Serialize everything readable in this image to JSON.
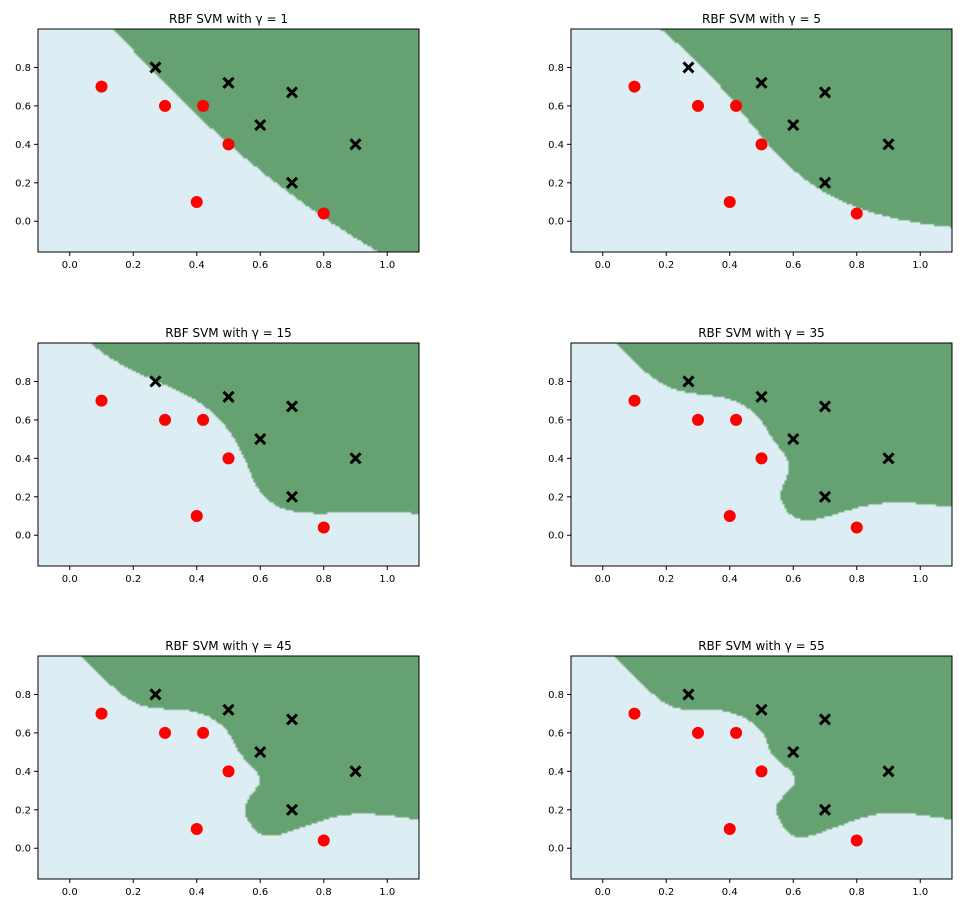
{
  "colors": {
    "class_a_region": "#ddedf4",
    "class_b_region": "#66a271",
    "red_points": "#ff0000",
    "x_points": "#000000",
    "frame": "#000000"
  },
  "chart_data": [
    {
      "type": "scatter",
      "title": "RBF SVM with γ = 1",
      "gamma": 1,
      "xlim": [
        -0.1,
        1.1
      ],
      "ylim": [
        -0.16,
        1.0
      ],
      "xticks": [
        "0.0",
        "0.2",
        "0.4",
        "0.6",
        "0.8",
        "1.0"
      ],
      "yticks": [
        "0.0",
        "0.2",
        "0.4",
        "0.6",
        "0.8"
      ],
      "series": [
        {
          "marker": "circle",
          "points": [
            [
              0.1,
              0.7
            ],
            [
              0.3,
              0.6
            ],
            [
              0.42,
              0.6
            ],
            [
              0.5,
              0.4
            ],
            [
              0.4,
              0.1
            ],
            [
              0.8,
              0.04
            ]
          ]
        },
        {
          "marker": "x",
          "points": [
            [
              0.27,
              0.8
            ],
            [
              0.5,
              0.72
            ],
            [
              0.7,
              0.67
            ],
            [
              0.6,
              0.5
            ],
            [
              0.9,
              0.4
            ],
            [
              0.7,
              0.2
            ]
          ]
        }
      ]
    },
    {
      "type": "scatter",
      "title": "RBF SVM with γ = 5",
      "gamma": 5,
      "xlim": [
        -0.1,
        1.1
      ],
      "ylim": [
        -0.16,
        1.0
      ],
      "xticks": [
        "0.0",
        "0.2",
        "0.4",
        "0.6",
        "0.8",
        "1.0"
      ],
      "yticks": [
        "0.0",
        "0.2",
        "0.4",
        "0.6",
        "0.8"
      ],
      "series": [
        {
          "marker": "circle",
          "points": [
            [
              0.1,
              0.7
            ],
            [
              0.3,
              0.6
            ],
            [
              0.42,
              0.6
            ],
            [
              0.5,
              0.4
            ],
            [
              0.4,
              0.1
            ],
            [
              0.8,
              0.04
            ]
          ]
        },
        {
          "marker": "x",
          "points": [
            [
              0.27,
              0.8
            ],
            [
              0.5,
              0.72
            ],
            [
              0.7,
              0.67
            ],
            [
              0.6,
              0.5
            ],
            [
              0.9,
              0.4
            ],
            [
              0.7,
              0.2
            ]
          ]
        }
      ]
    },
    {
      "type": "scatter",
      "title": "RBF SVM with γ = 15",
      "gamma": 15,
      "xlim": [
        -0.1,
        1.1
      ],
      "ylim": [
        -0.16,
        1.0
      ],
      "xticks": [
        "0.0",
        "0.2",
        "0.4",
        "0.6",
        "0.8",
        "1.0"
      ],
      "yticks": [
        "0.0",
        "0.2",
        "0.4",
        "0.6",
        "0.8"
      ],
      "series": [
        {
          "marker": "circle",
          "points": [
            [
              0.1,
              0.7
            ],
            [
              0.3,
              0.6
            ],
            [
              0.42,
              0.6
            ],
            [
              0.5,
              0.4
            ],
            [
              0.4,
              0.1
            ],
            [
              0.8,
              0.04
            ]
          ]
        },
        {
          "marker": "x",
          "points": [
            [
              0.27,
              0.8
            ],
            [
              0.5,
              0.72
            ],
            [
              0.7,
              0.67
            ],
            [
              0.6,
              0.5
            ],
            [
              0.9,
              0.4
            ],
            [
              0.7,
              0.2
            ]
          ]
        }
      ]
    },
    {
      "type": "scatter",
      "title": "RBF SVM with γ = 35",
      "gamma": 35,
      "xlim": [
        -0.1,
        1.1
      ],
      "ylim": [
        -0.16,
        1.0
      ],
      "xticks": [
        "0.0",
        "0.2",
        "0.4",
        "0.6",
        "0.8",
        "1.0"
      ],
      "yticks": [
        "0.0",
        "0.2",
        "0.4",
        "0.6",
        "0.8"
      ],
      "series": [
        {
          "marker": "circle",
          "points": [
            [
              0.1,
              0.7
            ],
            [
              0.3,
              0.6
            ],
            [
              0.42,
              0.6
            ],
            [
              0.5,
              0.4
            ],
            [
              0.4,
              0.1
            ],
            [
              0.8,
              0.04
            ]
          ]
        },
        {
          "marker": "x",
          "points": [
            [
              0.27,
              0.8
            ],
            [
              0.5,
              0.72
            ],
            [
              0.7,
              0.67
            ],
            [
              0.6,
              0.5
            ],
            [
              0.9,
              0.4
            ],
            [
              0.7,
              0.2
            ]
          ]
        }
      ]
    },
    {
      "type": "scatter",
      "title": "RBF SVM with γ = 45",
      "gamma": 45,
      "xlim": [
        -0.1,
        1.1
      ],
      "ylim": [
        -0.16,
        1.0
      ],
      "xticks": [
        "0.0",
        "0.2",
        "0.4",
        "0.6",
        "0.8",
        "1.0"
      ],
      "yticks": [
        "0.0",
        "0.2",
        "0.4",
        "0.6",
        "0.8"
      ],
      "series": [
        {
          "marker": "circle",
          "points": [
            [
              0.1,
              0.7
            ],
            [
              0.3,
              0.6
            ],
            [
              0.42,
              0.6
            ],
            [
              0.5,
              0.4
            ],
            [
              0.4,
              0.1
            ],
            [
              0.8,
              0.04
            ]
          ]
        },
        {
          "marker": "x",
          "points": [
            [
              0.27,
              0.8
            ],
            [
              0.5,
              0.72
            ],
            [
              0.7,
              0.67
            ],
            [
              0.6,
              0.5
            ],
            [
              0.9,
              0.4
            ],
            [
              0.7,
              0.2
            ]
          ]
        }
      ]
    },
    {
      "type": "scatter",
      "title": "RBF SVM with γ = 55",
      "gamma": 55,
      "xlim": [
        -0.1,
        1.1
      ],
      "ylim": [
        -0.16,
        1.0
      ],
      "xticks": [
        "0.0",
        "0.2",
        "0.4",
        "0.6",
        "0.8",
        "1.0"
      ],
      "yticks": [
        "0.0",
        "0.2",
        "0.4",
        "0.6",
        "0.8"
      ],
      "series": [
        {
          "marker": "circle",
          "points": [
            [
              0.1,
              0.7
            ],
            [
              0.3,
              0.6
            ],
            [
              0.42,
              0.6
            ],
            [
              0.5,
              0.4
            ],
            [
              0.4,
              0.1
            ],
            [
              0.8,
              0.04
            ]
          ]
        },
        {
          "marker": "x",
          "points": [
            [
              0.27,
              0.8
            ],
            [
              0.5,
              0.72
            ],
            [
              0.7,
              0.67
            ],
            [
              0.6,
              0.5
            ],
            [
              0.9,
              0.4
            ],
            [
              0.7,
              0.2
            ]
          ]
        }
      ]
    }
  ]
}
